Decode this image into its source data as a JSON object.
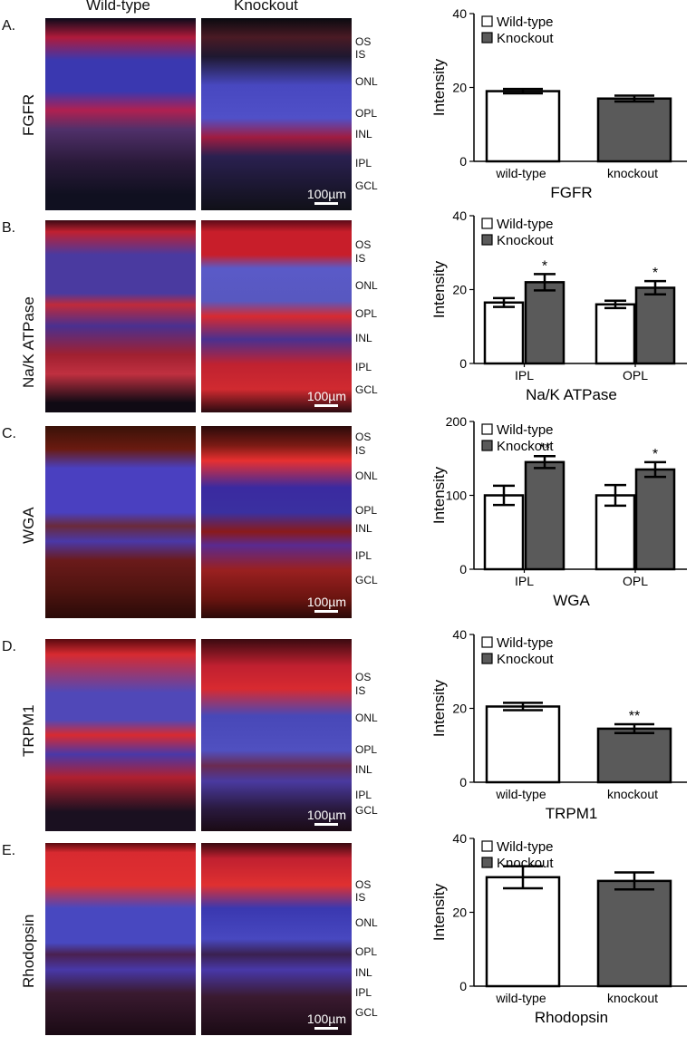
{
  "columns": {
    "left": "Wild-type",
    "right": "Knockout"
  },
  "scale_label": "100µm",
  "legend": {
    "wild": "Wild-type",
    "knockout": "Knockout"
  },
  "colors": {
    "wild": "#ffffff",
    "knockout": "#5a5a5a",
    "blue": "#3a3aa8",
    "red": "#c81e2a"
  },
  "panels": [
    {
      "letter": "A.",
      "stain": "FGFR",
      "layers": [
        "OS",
        "IS",
        "ONL",
        "OPL",
        "INL",
        "IPL",
        "GCL"
      ],
      "chart_data": {
        "type": "bar",
        "title": "",
        "xlabel": "FGFR",
        "ylabel": "Intensity",
        "categories": [
          "wild-type",
          "knockout"
        ],
        "grouped": false,
        "series": [
          {
            "name": "Wild-type",
            "values": [
              19,
              null
            ],
            "err": [
              0.6,
              null
            ]
          },
          {
            "name": "Knockout",
            "values": [
              null,
              17
            ],
            "err": [
              null,
              0.8
            ]
          }
        ],
        "ylim": [
          0,
          40
        ],
        "yticks": [
          0,
          20,
          40
        ],
        "sig": [
          "",
          ""
        ]
      }
    },
    {
      "letter": "B.",
      "stain": "Na/K ATPase",
      "layers": [
        "OS",
        "IS",
        "ONL",
        "OPL",
        "INL",
        "IPL",
        "GCL"
      ],
      "chart_data": {
        "type": "bar",
        "title": "",
        "xlabel": "Na/K ATPase",
        "ylabel": "Intensity",
        "categories": [
          "IPL",
          "OPL"
        ],
        "grouped": true,
        "series": [
          {
            "name": "Wild-type",
            "values": [
              16.5,
              16
            ],
            "err": [
              1.2,
              1
            ]
          },
          {
            "name": "Knockout",
            "values": [
              22,
              20.5
            ],
            "err": [
              2.2,
              1.8
            ]
          }
        ],
        "ylim": [
          0,
          40
        ],
        "yticks": [
          0,
          20,
          40
        ],
        "sig": [
          "*",
          "*"
        ]
      }
    },
    {
      "letter": "C.",
      "stain": "WGA",
      "layers": [
        "OS",
        "IS",
        "ONL",
        "OPL",
        "INL",
        "IPL",
        "GCL"
      ],
      "chart_data": {
        "type": "bar",
        "title": "",
        "xlabel": "WGA",
        "ylabel": "Intensity",
        "categories": [
          "IPL",
          "OPL"
        ],
        "grouped": true,
        "series": [
          {
            "name": "Wild-type",
            "values": [
              100,
              100
            ],
            "err": [
              13,
              14
            ]
          },
          {
            "name": "Knockout",
            "values": [
              145,
              135
            ],
            "err": [
              8,
              10
            ]
          }
        ],
        "ylim": [
          0,
          200
        ],
        "yticks": [
          0,
          100,
          200
        ],
        "sig": [
          "**",
          "*"
        ]
      }
    },
    {
      "letter": "D.",
      "stain": "TRPM1",
      "layers": [
        "OS",
        "IS",
        "ONL",
        "OPL",
        "INL",
        "IPL",
        "GCL"
      ],
      "chart_data": {
        "type": "bar",
        "title": "",
        "xlabel": "TRPM1",
        "ylabel": "Intensity",
        "categories": [
          "wild-type",
          "knockout"
        ],
        "grouped": false,
        "series": [
          {
            "name": "Wild-type",
            "values": [
              20.5,
              null
            ],
            "err": [
              1,
              null
            ]
          },
          {
            "name": "Knockout",
            "values": [
              null,
              14.5
            ],
            "err": [
              null,
              1.2
            ]
          }
        ],
        "ylim": [
          0,
          40
        ],
        "yticks": [
          0,
          20,
          40
        ],
        "sig": [
          "",
          "**"
        ]
      }
    },
    {
      "letter": "E.",
      "stain": "Rhodopsin",
      "layers": [
        "OS",
        "IS",
        "ONL",
        "OPL",
        "INL",
        "IPL",
        "GCL"
      ],
      "chart_data": {
        "type": "bar",
        "title": "",
        "xlabel": "Rhodopsin",
        "ylabel": "Intensity",
        "categories": [
          "wild-type",
          "knockout"
        ],
        "grouped": false,
        "series": [
          {
            "name": "Wild-type",
            "values": [
              29.5,
              null
            ],
            "err": [
              3,
              null
            ]
          },
          {
            "name": "Knockout",
            "values": [
              null,
              28.5
            ],
            "err": [
              null,
              2.3
            ]
          }
        ],
        "ylim": [
          0,
          40
        ],
        "yticks": [
          0,
          20,
          40
        ],
        "sig": [
          "",
          ""
        ]
      }
    }
  ]
}
